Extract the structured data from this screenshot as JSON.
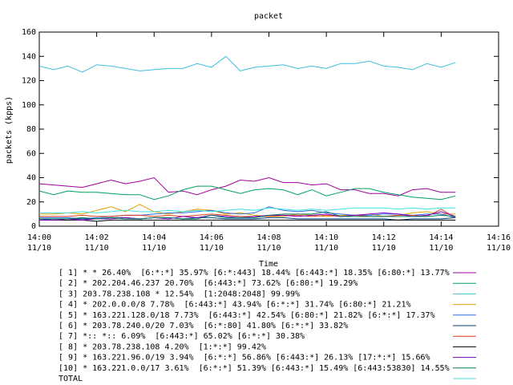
{
  "chart_data": {
    "type": "line",
    "title": "packet",
    "xlabel": "Time",
    "ylabel": "packets (kpps)",
    "ylim": [
      0,
      160
    ],
    "xlim": [
      "14:00",
      "14:16"
    ],
    "grid": false,
    "legend_placement": "bottom",
    "y_ticks": [
      "0",
      "20",
      "40",
      "60",
      "80",
      "100",
      "120",
      "140",
      "160"
    ],
    "x_ticks": [
      {
        "time": "14:00",
        "date": "11/10"
      },
      {
        "time": "14:02",
        "date": "11/10"
      },
      {
        "time": "14:04",
        "date": "11/10"
      },
      {
        "time": "14:06",
        "date": "11/10"
      },
      {
        "time": "14:08",
        "date": "11/10"
      },
      {
        "time": "14:10",
        "date": "11/10"
      },
      {
        "time": "14:12",
        "date": "11/10"
      },
      {
        "time": "14:14",
        "date": "11/10"
      },
      {
        "time": "14:16",
        "date": "11/10"
      }
    ],
    "x": [
      "14:00:00",
      "14:00:30",
      "14:01:00",
      "14:01:30",
      "14:02:00",
      "14:02:30",
      "14:03:00",
      "14:03:30",
      "14:04:00",
      "14:04:30",
      "14:05:00",
      "14:05:30",
      "14:06:00",
      "14:06:30",
      "14:07:00",
      "14:07:30",
      "14:08:00",
      "14:08:30",
      "14:09:00",
      "14:09:30",
      "14:10:00",
      "14:10:30",
      "14:11:00",
      "14:11:30",
      "14:12:00",
      "14:12:30",
      "14:13:00",
      "14:13:30",
      "14:14:00",
      "14:14:30"
    ],
    "series": [
      {
        "name": "[ 1] * * 26.40%  [6:*:*] 35.97% [6:*:443] 18.44% [6:443:*] 18.35% [6:80:*] 13.77%",
        "color": "#a000a0",
        "values": [
          35,
          34,
          33,
          32,
          35,
          38,
          35,
          37,
          40,
          28,
          29,
          26,
          30,
          33,
          38,
          37,
          40,
          36,
          36,
          34,
          35,
          30,
          30,
          27,
          27,
          25,
          30,
          31,
          28,
          28
        ]
      },
      {
        "name": "[ 2] * 202.204.46.237 20.70%  [6:443:*] 73.62% [6:80:*] 19.29%",
        "color": "#00a060",
        "values": [
          29,
          26,
          29,
          28,
          28,
          27,
          26,
          26,
          22,
          25,
          30,
          33,
          33,
          30,
          27,
          30,
          31,
          30,
          26,
          30,
          25,
          28,
          31,
          31,
          28,
          26,
          24,
          23,
          22,
          25
        ]
      },
      {
        "name": "[ 3] 203.78.238.108 * 12.54%  [1:2048:2048] 99.99%",
        "color": "#40c0e0",
        "values": [
          132,
          129,
          132,
          127,
          133,
          132,
          130,
          128,
          129,
          130,
          130,
          134,
          131,
          140,
          128,
          131,
          132,
          133,
          130,
          132,
          130,
          134,
          134,
          136,
          132,
          131,
          129,
          134,
          131,
          135
        ]
      },
      {
        "name": "[ 4] * 202.0.0.0/8 7.78%  [6:443:*] 43.94% [6:*:*] 31.74% [6:80:*] 21.21%",
        "color": "#e0a000",
        "values": [
          10,
          10,
          11,
          10,
          13,
          16,
          12,
          18,
          12,
          10,
          12,
          14,
          13,
          10,
          11,
          9,
          8,
          8,
          10,
          9,
          8,
          9,
          9,
          10,
          8,
          9,
          11,
          12,
          10,
          10
        ]
      },
      {
        "name": "[ 5] * 163.221.128.0/18 7.73%  [6:443:*] 42.54% [6:80:*] 21.82% [6:*:*] 17.37%",
        "color": "#3070e0",
        "values": [
          7,
          7,
          7,
          6,
          7,
          8,
          9,
          9,
          10,
          11,
          11,
          12,
          13,
          11,
          10,
          11,
          16,
          13,
          12,
          13,
          11,
          10,
          9,
          9,
          10,
          10,
          9,
          10,
          10,
          7
        ]
      },
      {
        "name": "[ 6] * 203.78.240.0/20 7.03%  [6:*:80] 41.80% [6:*:*] 33.82%",
        "color": "#004080",
        "values": [
          6,
          5,
          6,
          6,
          6,
          7,
          7,
          6,
          7,
          7,
          6,
          7,
          7,
          6,
          6,
          6,
          7,
          7,
          6,
          6,
          6,
          6,
          6,
          6,
          6,
          5,
          6,
          6,
          6,
          7
        ]
      },
      {
        "name": "[ 7] *:: *:: 6.09%  [6:443:*] 65.02% [6:*:*] 30.38%",
        "color": "#e04020",
        "values": [
          8,
          8,
          8,
          9,
          8,
          8,
          9,
          9,
          8,
          9,
          8,
          9,
          10,
          9,
          8,
          8,
          8,
          9,
          9,
          8,
          9,
          8,
          9,
          8,
          8,
          9,
          9,
          8,
          14,
          7
        ]
      },
      {
        "name": "[ 8] * 203.78.238.108 4.20%  [1:*:*] 99.42%",
        "color": "#000000",
        "values": [
          5,
          5,
          5,
          5,
          4,
          5,
          5,
          5,
          5,
          5,
          5,
          5,
          5,
          5,
          5,
          5,
          5,
          5,
          5,
          5,
          5,
          5,
          5,
          5,
          5,
          5,
          5,
          5,
          5,
          5
        ]
      },
      {
        "name": "[ 9] * 163.221.96.0/19 3.94%  [6:*:*] 56.86% [6:443:*] 26.13% [17:*:*] 15.66%",
        "color": "#8000c0",
        "values": [
          5,
          5,
          6,
          5,
          6,
          6,
          7,
          6,
          7,
          6,
          8,
          7,
          9,
          8,
          7,
          8,
          9,
          9,
          8,
          9,
          10,
          8,
          9,
          10,
          11,
          10,
          8,
          9,
          12,
          8
        ]
      },
      {
        "name": "[10] * 163.221.0.0/17 3.61%  [6:*:*] 51.39% [6:443:*] 15.49% [6:443:53830] 14.55%",
        "color": "#008060",
        "values": [
          6,
          6,
          6,
          7,
          6,
          7,
          6,
          6,
          7,
          7,
          6,
          6,
          9,
          7,
          7,
          7,
          9,
          10,
          10,
          10,
          12,
          8,
          8,
          8,
          8,
          8,
          8,
          8,
          9,
          8
        ]
      },
      {
        "name": "TOTAL",
        "color": "#40e0e0",
        "values": [
          11,
          11,
          11,
          12,
          11,
          12,
          13,
          12,
          12,
          13,
          12,
          13,
          12,
          13,
          14,
          13,
          15,
          14,
          13,
          14,
          13,
          14,
          15,
          15,
          15,
          14,
          15,
          14,
          15,
          15
        ]
      }
    ]
  }
}
